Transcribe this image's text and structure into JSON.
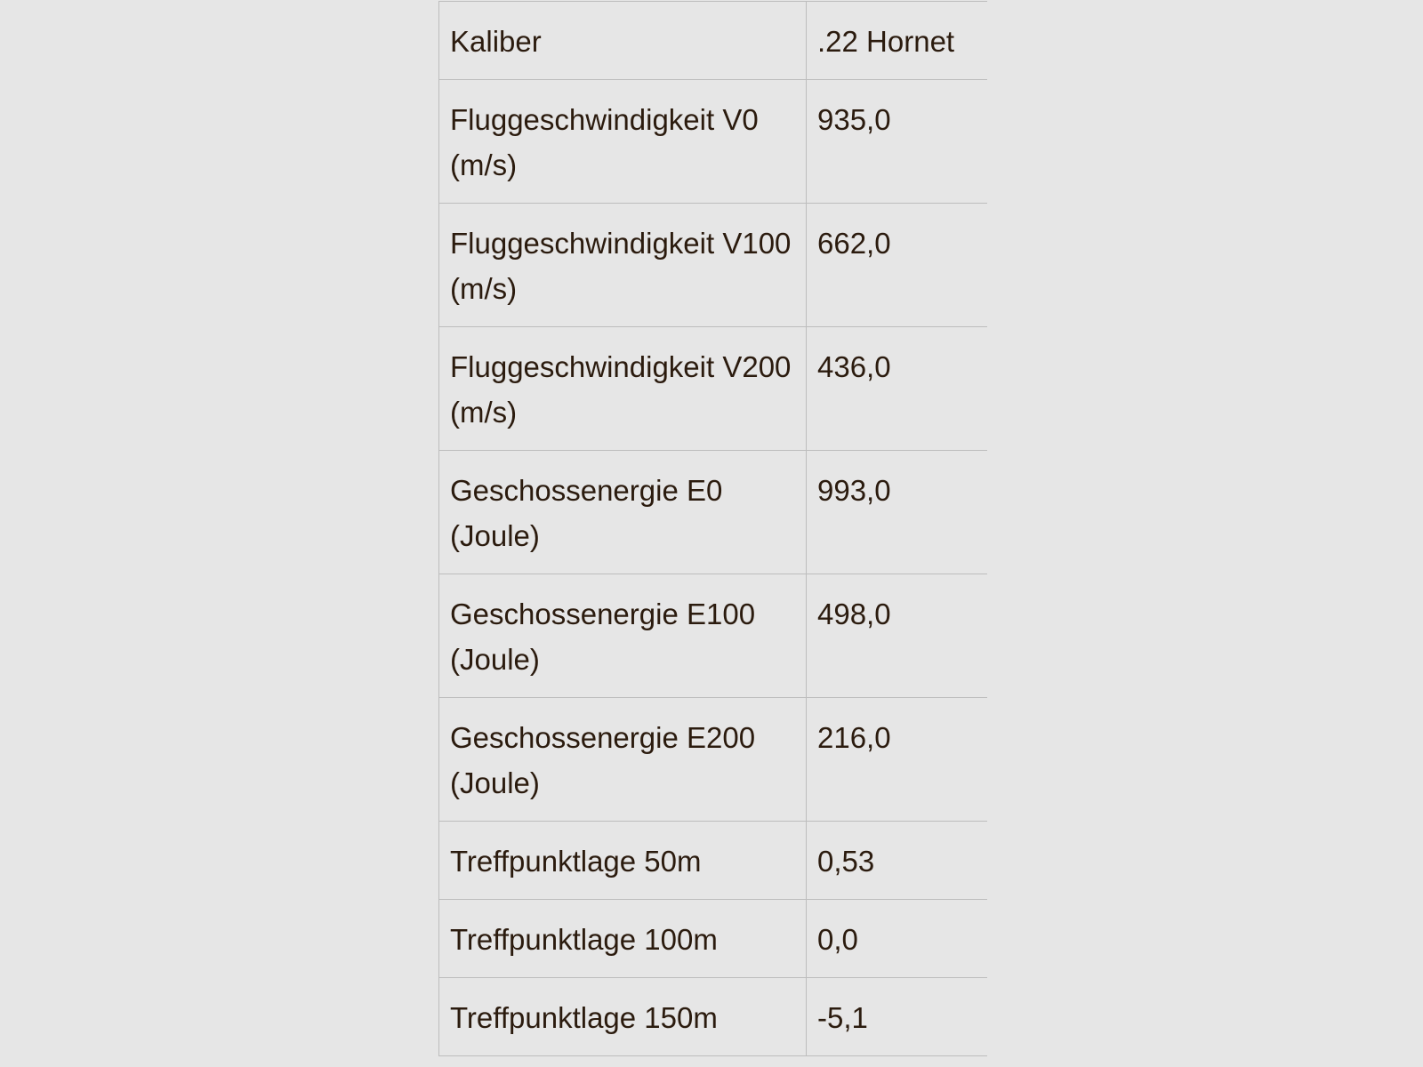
{
  "spec_table": {
    "rows": [
      {
        "label": "Kaliber",
        "value": ".22 Hornet"
      },
      {
        "label": "Fluggeschwindigkeit V0 (m/s)",
        "value": "935,0"
      },
      {
        "label": "Fluggeschwindigkeit V100 (m/s)",
        "value": "662,0"
      },
      {
        "label": "Fluggeschwindigkeit V200 (m/s)",
        "value": "436,0"
      },
      {
        "label": "Geschossenergie E0 (Joule)",
        "value": "993,0"
      },
      {
        "label": "Geschossenergie E100 (Joule)",
        "value": "498,0"
      },
      {
        "label": "Geschossenergie E200 (Joule)",
        "value": "216,0"
      },
      {
        "label": "Treffpunktlage 50m",
        "value": "0,53"
      },
      {
        "label": "Treffpunktlage 100m",
        "value": "0,0"
      },
      {
        "label": "Treffpunktlage 150m",
        "value": "-5,1"
      }
    ]
  },
  "colors": {
    "background": "#e6e6e6",
    "text": "#2b1b0e",
    "border": "#bdbdbd"
  }
}
